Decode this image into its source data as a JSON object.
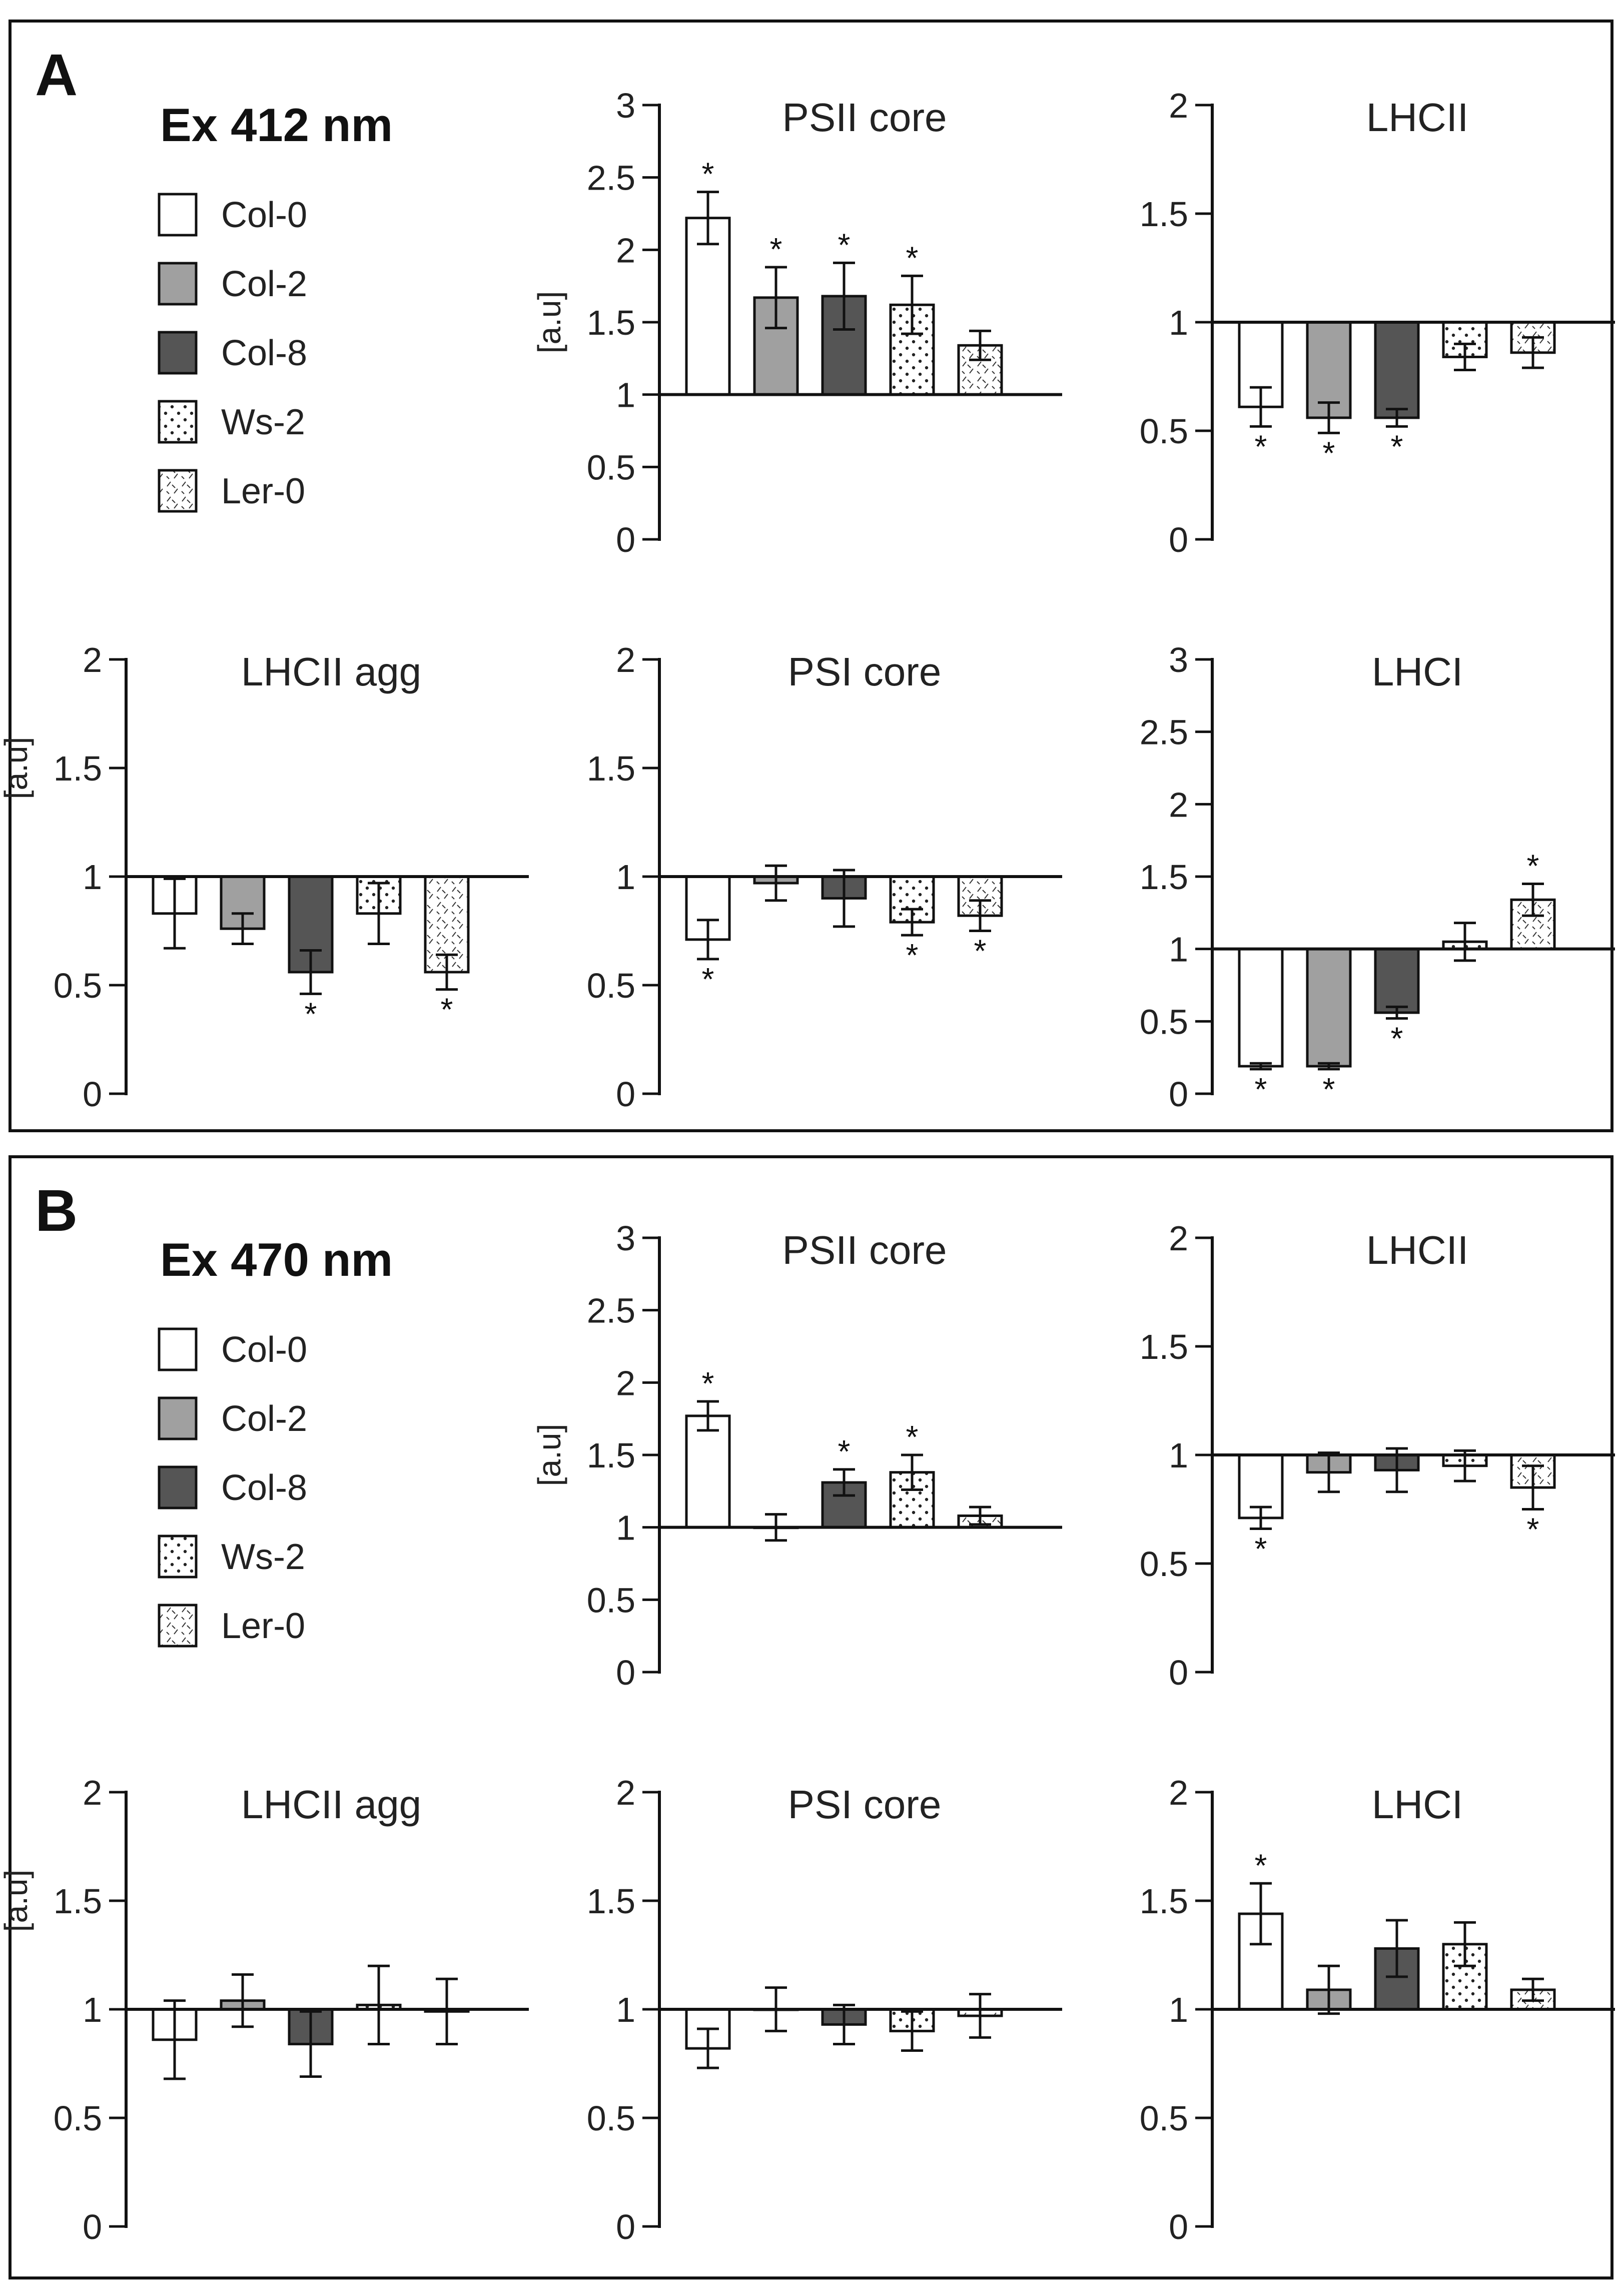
{
  "figure": {
    "colors": {
      "Col-0": "#ffffff",
      "Col-2": "#a0a0a0",
      "Col-8": "#555555",
      "Ws-2": "#ffffff",
      "Ler-0": "#ffffff",
      "frame": "#111111"
    },
    "panels": [
      {
        "letter": "A",
        "excitation": "Ex 412 nm",
        "legend": [
          {
            "label": "Col-0",
            "pattern": "open"
          },
          {
            "label": "Col-2",
            "pattern": "light-gray"
          },
          {
            "label": "Col-8",
            "pattern": "dark-gray"
          },
          {
            "label": "Ws-2",
            "pattern": "dots"
          },
          {
            "label": "Ler-0",
            "pattern": "dashes"
          }
        ]
      },
      {
        "letter": "B",
        "excitation": "Ex 470 nm",
        "legend": [
          {
            "label": "Col-0",
            "pattern": "open"
          },
          {
            "label": "Col-2",
            "pattern": "light-gray"
          },
          {
            "label": "Col-8",
            "pattern": "dark-gray"
          },
          {
            "label": "Ws-2",
            "pattern": "dots"
          },
          {
            "label": "Ler-0",
            "pattern": "dashes"
          }
        ]
      }
    ]
  },
  "chart_data": [
    {
      "panel": "A",
      "type": "bar",
      "title": "PSII core",
      "ylabel": "[a.u]",
      "categories": [
        "Col-0",
        "Col-2",
        "Col-8",
        "Ws-2",
        "Ler-0"
      ],
      "values": [
        2.22,
        1.67,
        1.68,
        1.62,
        1.34
      ],
      "errors": [
        0.18,
        0.21,
        0.23,
        0.2,
        0.1
      ],
      "significant": [
        true,
        true,
        true,
        true,
        false
      ],
      "baseline": 1,
      "ylim": [
        0,
        3
      ],
      "yticks": [
        0,
        0.5,
        1,
        1.5,
        2,
        2.5,
        3
      ],
      "ytick_labels": [
        "0",
        "0.5",
        "1",
        "1.5",
        "2",
        "2.5",
        "3"
      ]
    },
    {
      "panel": "A",
      "type": "bar",
      "title": "LHCII",
      "ylabel": "",
      "categories": [
        "Col-0",
        "Col-2",
        "Col-8",
        "Ws-2",
        "Ler-0"
      ],
      "values": [
        0.61,
        0.56,
        0.56,
        0.84,
        0.86
      ],
      "errors": [
        0.09,
        0.07,
        0.04,
        0.06,
        0.07
      ],
      "significant": [
        true,
        true,
        true,
        false,
        false
      ],
      "baseline": 1,
      "ylim": [
        0,
        2
      ],
      "yticks": [
        0,
        0.5,
        1,
        1.5,
        2
      ],
      "ytick_labels": [
        "0",
        "0.5",
        "1",
        "1.5",
        "2"
      ]
    },
    {
      "panel": "A",
      "type": "bar",
      "title": "LHCII agg",
      "ylabel": "[a.u]",
      "categories": [
        "Col-0",
        "Col-2",
        "Col-8",
        "Ws-2",
        "Ler-0"
      ],
      "values": [
        0.83,
        0.76,
        0.56,
        0.83,
        0.56
      ],
      "errors": [
        0.16,
        0.07,
        0.1,
        0.14,
        0.08
      ],
      "significant": [
        false,
        false,
        true,
        false,
        true
      ],
      "baseline": 1,
      "ylim": [
        0,
        2
      ],
      "yticks": [
        0,
        0.5,
        1,
        1.5,
        2
      ],
      "ytick_labels": [
        "0",
        "0.5",
        "1",
        "1.5",
        "2"
      ]
    },
    {
      "panel": "A",
      "type": "bar",
      "title": "PSI core",
      "ylabel": "",
      "categories": [
        "Col-0",
        "Col-2",
        "Col-8",
        "Ws-2",
        "Ler-0"
      ],
      "values": [
        0.71,
        0.97,
        0.9,
        0.79,
        0.82
      ],
      "errors": [
        0.09,
        0.08,
        0.13,
        0.06,
        0.07
      ],
      "significant": [
        true,
        false,
        false,
        true,
        true
      ],
      "baseline": 1,
      "ylim": [
        0,
        2
      ],
      "yticks": [
        0,
        0.5,
        1,
        1.5,
        2
      ],
      "ytick_labels": [
        "0",
        "0.5",
        "1",
        "1.5",
        "2"
      ]
    },
    {
      "panel": "A",
      "type": "bar",
      "title": "LHCI",
      "ylabel": "",
      "categories": [
        "Col-0",
        "Col-2",
        "Col-8",
        "Ws-2",
        "Ler-0"
      ],
      "values": [
        0.19,
        0.19,
        0.56,
        1.05,
        1.34
      ],
      "errors": [
        0.02,
        0.02,
        0.04,
        0.13,
        0.11
      ],
      "significant": [
        true,
        true,
        true,
        false,
        true
      ],
      "baseline": 1,
      "ylim": [
        0,
        3
      ],
      "yticks": [
        0,
        0.5,
        1,
        1.5,
        2,
        2.5,
        3
      ],
      "ytick_labels": [
        "0",
        "0.5",
        "1",
        "1.5",
        "2",
        "2.5",
        "3"
      ]
    },
    {
      "panel": "B",
      "type": "bar",
      "title": "PSII core",
      "ylabel": "[a.u]",
      "categories": [
        "Col-0",
        "Col-2",
        "Col-8",
        "Ws-2",
        "Ler-0"
      ],
      "values": [
        1.77,
        1.0,
        1.31,
        1.38,
        1.08
      ],
      "errors": [
        0.1,
        0.09,
        0.09,
        0.12,
        0.06
      ],
      "significant": [
        true,
        false,
        true,
        true,
        false
      ],
      "baseline": 1,
      "ylim": [
        0,
        3
      ],
      "yticks": [
        0,
        0.5,
        1,
        1.5,
        2,
        2.5,
        3
      ],
      "ytick_labels": [
        "0",
        "0.5",
        "1",
        "1.5",
        "2",
        "2.5",
        "3"
      ]
    },
    {
      "panel": "B",
      "type": "bar",
      "title": "LHCII",
      "ylabel": "",
      "categories": [
        "Col-0",
        "Col-2",
        "Col-8",
        "Ws-2",
        "Ler-0"
      ],
      "values": [
        0.71,
        0.92,
        0.93,
        0.95,
        0.85
      ],
      "errors": [
        0.05,
        0.09,
        0.1,
        0.07,
        0.1
      ],
      "significant": [
        true,
        false,
        false,
        false,
        true
      ],
      "baseline": 1,
      "ylim": [
        0,
        2
      ],
      "yticks": [
        0,
        0.5,
        1,
        1.5,
        2
      ],
      "ytick_labels": [
        "0",
        "0.5",
        "1",
        "1.5",
        "2"
      ]
    },
    {
      "panel": "B",
      "type": "bar",
      "title": "LHCII agg",
      "ylabel": "[a.u]",
      "categories": [
        "Col-0",
        "Col-2",
        "Col-8",
        "Ws-2",
        "Ler-0"
      ],
      "values": [
        0.86,
        1.04,
        0.84,
        1.02,
        0.99
      ],
      "errors": [
        0.18,
        0.12,
        0.15,
        0.18,
        0.15
      ],
      "significant": [
        false,
        false,
        false,
        false,
        false
      ],
      "baseline": 1,
      "ylim": [
        0,
        2
      ],
      "yticks": [
        0,
        0.5,
        1,
        1.5,
        2
      ],
      "ytick_labels": [
        "0",
        "0.5",
        "1",
        "1.5",
        "2"
      ]
    },
    {
      "panel": "B",
      "type": "bar",
      "title": "PSI core",
      "ylabel": "",
      "categories": [
        "Col-0",
        "Col-2",
        "Col-8",
        "Ws-2",
        "Ler-0"
      ],
      "values": [
        0.82,
        1.0,
        0.93,
        0.9,
        0.97
      ],
      "errors": [
        0.09,
        0.1,
        0.09,
        0.09,
        0.1
      ],
      "significant": [
        false,
        false,
        false,
        false,
        false
      ],
      "baseline": 1,
      "ylim": [
        0,
        2
      ],
      "yticks": [
        0,
        0.5,
        1,
        1.5,
        2
      ],
      "ytick_labels": [
        "0",
        "0.5",
        "1",
        "1.5",
        "2"
      ]
    },
    {
      "panel": "B",
      "type": "bar",
      "title": "LHCI",
      "ylabel": "",
      "categories": [
        "Col-0",
        "Col-2",
        "Col-8",
        "Ws-2",
        "Ler-0"
      ],
      "values": [
        1.44,
        1.09,
        1.28,
        1.3,
        1.09
      ],
      "errors": [
        0.14,
        0.11,
        0.13,
        0.1,
        0.05
      ],
      "significant": [
        true,
        false,
        false,
        false,
        false
      ],
      "baseline": 1,
      "ylim": [
        0,
        2
      ],
      "yticks": [
        0,
        0.5,
        1,
        1.5,
        2
      ],
      "ytick_labels": [
        "0",
        "0.5",
        "1",
        "1.5",
        "2"
      ]
    }
  ]
}
